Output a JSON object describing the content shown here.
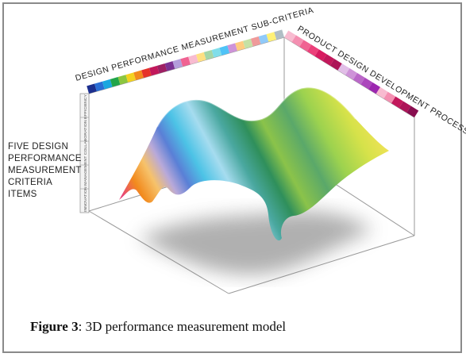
{
  "labels": {
    "top_axis": "DESIGN PERFORMANCE MEASUREMENT SUB-CRITERIA",
    "right_axis": "PRODUCT DESIGN DEVELOPMENT PROCESS",
    "left_axis_lines": [
      "FIVE DESIGN",
      "PERFORMANCE",
      "MEASUREMENT",
      "CRITERIA ITEMS"
    ],
    "vertical_scale": "INNOVATION MANAGEMENT COLLABORATION EFFICIENCY"
  },
  "caption": {
    "label": "Figure 3",
    "text": ": 3D performance measurement model"
  },
  "colors": {
    "top_swatches": [
      "#1c2f8f",
      "#2a6fd6",
      "#19a7e0",
      "#22a54a",
      "#8cc63f",
      "#f4d21f",
      "#f28a1d",
      "#e6332a",
      "#c2185b",
      "#9e1f63",
      "#7b3294",
      "#b39ddb",
      "#f06292",
      "#f8bbd0",
      "#ffe082",
      "#a5d6a7",
      "#80deea",
      "#4fc3f7",
      "#ce93d8",
      "#ffcc80",
      "#c5e1a5",
      "#ef9a9a",
      "#90caf9",
      "#fff176",
      "#b0bec5"
    ],
    "right_swatches": [
      "#f8bbd0",
      "#f48fb1",
      "#f06292",
      "#ec407a",
      "#d81b60",
      "#c2185b",
      "#ad1457",
      "#e1bee7",
      "#ce93d8",
      "#ba68c8",
      "#ab47bc",
      "#9c27b0",
      "#f8bbd0",
      "#f48fb1",
      "#c2185b",
      "#ad1457",
      "#880e4f"
    ]
  }
}
